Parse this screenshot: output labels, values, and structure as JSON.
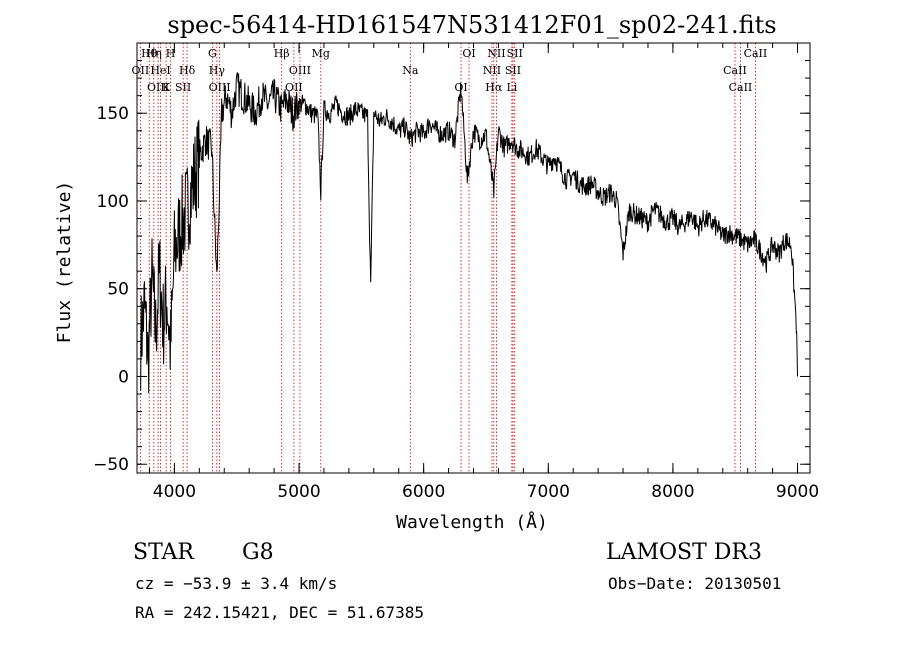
{
  "chart_data": {
    "type": "line",
    "title": "spec-56414-HD161547N531412F01_sp02-241.fits",
    "xlabel": "Wavelength (Å)",
    "ylabel": "Flux (relative)",
    "xlim": [
      3700,
      9100
    ],
    "ylim": [
      -55,
      190
    ],
    "xticks": [
      4000,
      5000,
      6000,
      7000,
      8000,
      9000
    ],
    "yticks": [
      -50,
      0,
      50,
      100,
      150
    ],
    "grid": false,
    "line_color": "#000000",
    "marker_color": "#cc0000",
    "series": [
      {
        "x": [
          3730,
          3760,
          3790,
          3820,
          3850,
          3880,
          3910,
          3940,
          3970,
          4000,
          4050,
          4100,
          4150,
          4200,
          4250,
          4300,
          4340,
          4380,
          4420,
          4460,
          4500,
          4550,
          4600,
          4650,
          4700,
          4750,
          4800,
          4861,
          4900,
          4950,
          5000,
          5050,
          5100,
          5150,
          5175,
          5200,
          5250,
          5300,
          5350,
          5400,
          5450,
          5500,
          5550,
          5575,
          5600,
          5650,
          5700,
          5750,
          5800,
          5850,
          5893,
          5950,
          6000,
          6050,
          6100,
          6150,
          6200,
          6250,
          6300,
          6350,
          6400,
          6450,
          6500,
          6563,
          6600,
          6650,
          6700,
          6750,
          6800,
          6850,
          6900,
          6950,
          7000,
          7050,
          7100,
          7150,
          7200,
          7250,
          7300,
          7350,
          7400,
          7450,
          7500,
          7550,
          7600,
          7650,
          7700,
          7750,
          7800,
          7850,
          7900,
          7950,
          8000,
          8050,
          8100,
          8150,
          8200,
          8250,
          8300,
          8350,
          8400,
          8450,
          8500,
          8550,
          8600,
          8650,
          8700,
          8750,
          8800,
          8850,
          8900,
          8950,
          8990,
          9000
        ],
        "y": [
          20,
          40,
          10,
          55,
          25,
          60,
          30,
          45,
          15,
          70,
          85,
          95,
          110,
          125,
          135,
          130,
          55,
          150,
          160,
          150,
          165,
          160,
          155,
          150,
          160,
          155,
          160,
          152,
          158,
          150,
          155,
          155,
          150,
          148,
          105,
          152,
          150,
          155,
          150,
          148,
          152,
          150,
          148,
          50,
          150,
          145,
          148,
          145,
          140,
          142,
          135,
          140,
          138,
          145,
          140,
          138,
          140,
          135,
          165,
          112,
          140,
          135,
          138,
          105,
          140,
          130,
          135,
          130,
          128,
          125,
          130,
          125,
          120,
          125,
          118,
          112,
          115,
          110,
          108,
          110,
          105,
          102,
          105,
          100,
          70,
          95,
          92,
          90,
          88,
          95,
          92,
          88,
          90,
          85,
          88,
          92,
          85,
          90,
          88,
          85,
          80,
          82,
          80,
          78,
          75,
          78,
          72,
          65,
          75,
          70,
          78,
          75,
          30,
          0
        ]
      }
    ],
    "lines": [
      {
        "name": "Hθ",
        "x": 3798
      },
      {
        "name": "OII",
        "x": 3727
      },
      {
        "name": "OIII",
        "x": 3869
      },
      {
        "name": "Hη",
        "x": 3835
      },
      {
        "name": "HeI",
        "x": 3889
      },
      {
        "name": "K",
        "x": 3934
      },
      {
        "name": "H",
        "x": 3969
      },
      {
        "name": "Hδ",
        "x": 4102
      },
      {
        "name": "SII",
        "x": 4070
      },
      {
        "name": "G",
        "x": 4305
      },
      {
        "name": "Hγ",
        "x": 4341
      },
      {
        "name": "OIII",
        "x": 4363
      },
      {
        "name": "Hβ",
        "x": 4861
      },
      {
        "name": "OIII",
        "x": 5007
      },
      {
        "name": "OII",
        "x": 4959
      },
      {
        "name": "Mg",
        "x": 5175
      },
      {
        "name": "Na",
        "x": 5893
      },
      {
        "name": "OI",
        "x": 6300
      },
      {
        "name": "OI",
        "x": 6364
      },
      {
        "name": "NII",
        "x": 6548
      },
      {
        "name": "Hα",
        "x": 6563
      },
      {
        "name": "NII",
        "x": 6584
      },
      {
        "name": "SII",
        "x": 6717
      },
      {
        "name": "Li",
        "x": 6708
      },
      {
        "name": "SII",
        "x": 6731
      },
      {
        "name": "CaII",
        "x": 8498
      },
      {
        "name": "CaII",
        "x": 8542
      },
      {
        "name": "CaII",
        "x": 8662
      }
    ]
  },
  "info": {
    "class_label": "STAR",
    "subclass": "G8",
    "survey": "LAMOST DR3",
    "cz": "cz = −53.9 ± 3.4 km/s",
    "obs_date": "Obs−Date: 20130501",
    "radec": "RA = 242.15421, DEC =  51.67385"
  }
}
